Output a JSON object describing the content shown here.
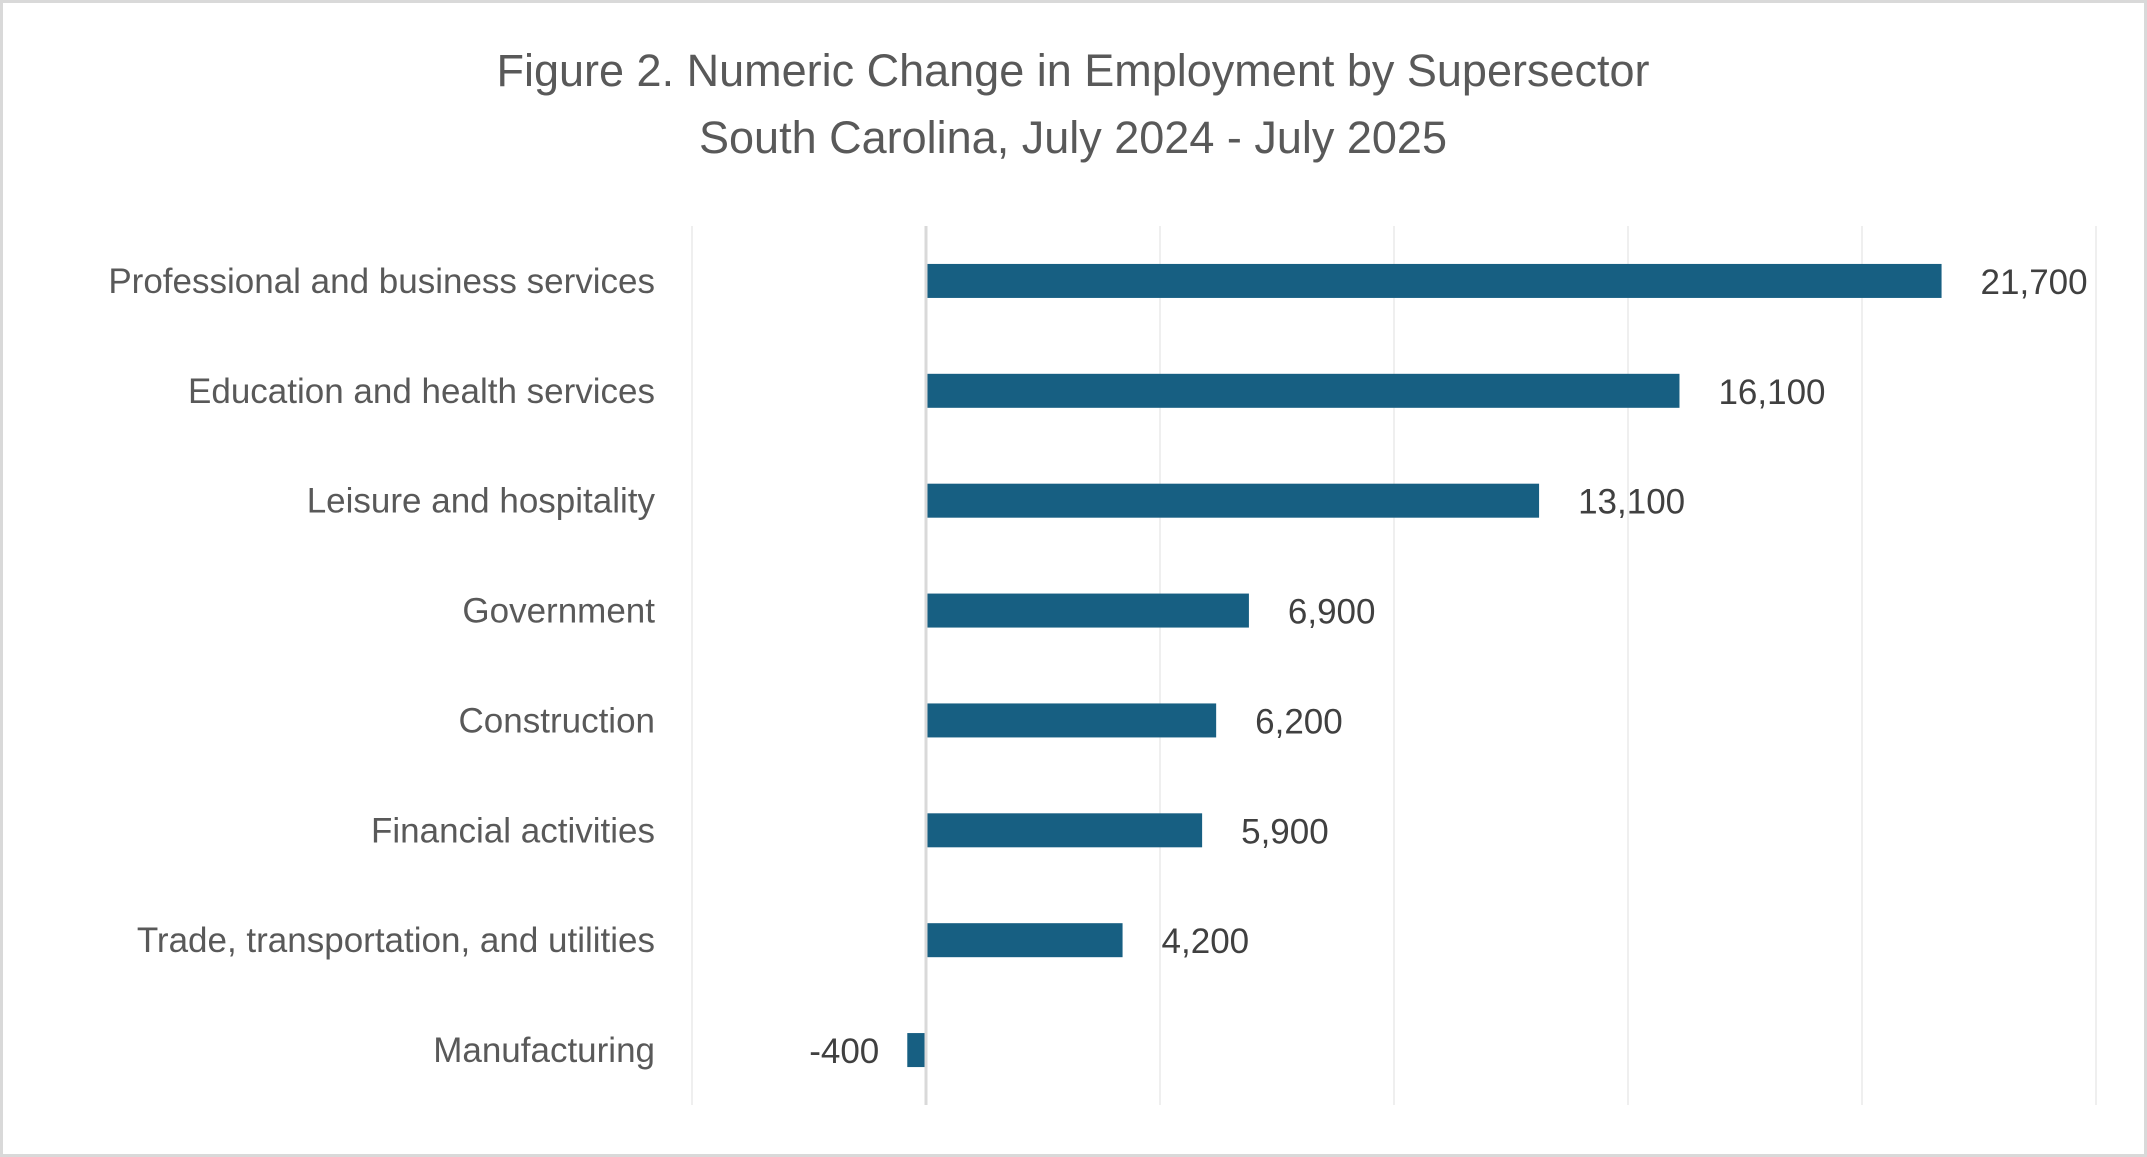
{
  "chart_data": {
    "type": "bar",
    "orientation": "horizontal",
    "title": "Figure 2. Numeric Change in Employment by Supersector",
    "subtitle": "South Carolina, July 2024 - July 2025",
    "xlabel": "",
    "ylabel": "",
    "xlim": [
      -5000,
      25000
    ],
    "x_gridline_step": 5000,
    "grid": true,
    "legend": "none",
    "categories": [
      "Professional and business services",
      "Education and health services",
      "Leisure and hospitality",
      "Government",
      "Construction",
      "Financial activities",
      "Trade, transportation, and utilities",
      "Manufacturing"
    ],
    "values": [
      21700,
      16100,
      13100,
      6900,
      6200,
      5900,
      4200,
      -400
    ],
    "data_labels": [
      "21,700",
      "16,100",
      "13,100",
      "6,900",
      "6,200",
      "5,900",
      "4,200",
      "-400"
    ],
    "colors": {
      "bar": "#175f82",
      "gridline": "#efefef",
      "axis": "#d9d9d9",
      "title": "#595959",
      "category_label": "#595959",
      "data_label": "#404040",
      "border": "#d9d9d9"
    }
  }
}
